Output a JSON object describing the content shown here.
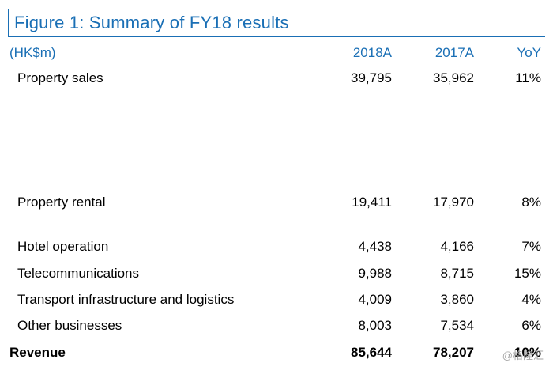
{
  "title": "Figure 1: Summary of FY18 results",
  "header": {
    "unit": "(HK$m)",
    "col1": "2018A",
    "col2": "2017A",
    "col3": "YoY"
  },
  "rows": [
    {
      "label": "Property sales",
      "v2018": "39,795",
      "v2017": "35,962",
      "yoy": "11%"
    },
    {
      "label": "Property rental",
      "v2018": "19,411",
      "v2017": "17,970",
      "yoy": "8%"
    },
    {
      "label": "Hotel operation",
      "v2018": "4,438",
      "v2017": "4,166",
      "yoy": "7%"
    },
    {
      "label": "Telecommunications",
      "v2018": "9,988",
      "v2017": "8,715",
      "yoy": "15%"
    },
    {
      "label": "Transport infrastructure and logistics",
      "v2018": "4,009",
      "v2017": "3,860",
      "yoy": "4%"
    },
    {
      "label": "Other businesses",
      "v2018": "8,003",
      "v2017": "7,534",
      "yoy": "6%"
    }
  ],
  "total": {
    "label": "Revenue",
    "v2018": "85,644",
    "v2017": "78,207",
    "yoy": "10%"
  },
  "watermark": "@格隆汇",
  "colors": {
    "accent": "#1a6fb5",
    "text": "#000000"
  }
}
